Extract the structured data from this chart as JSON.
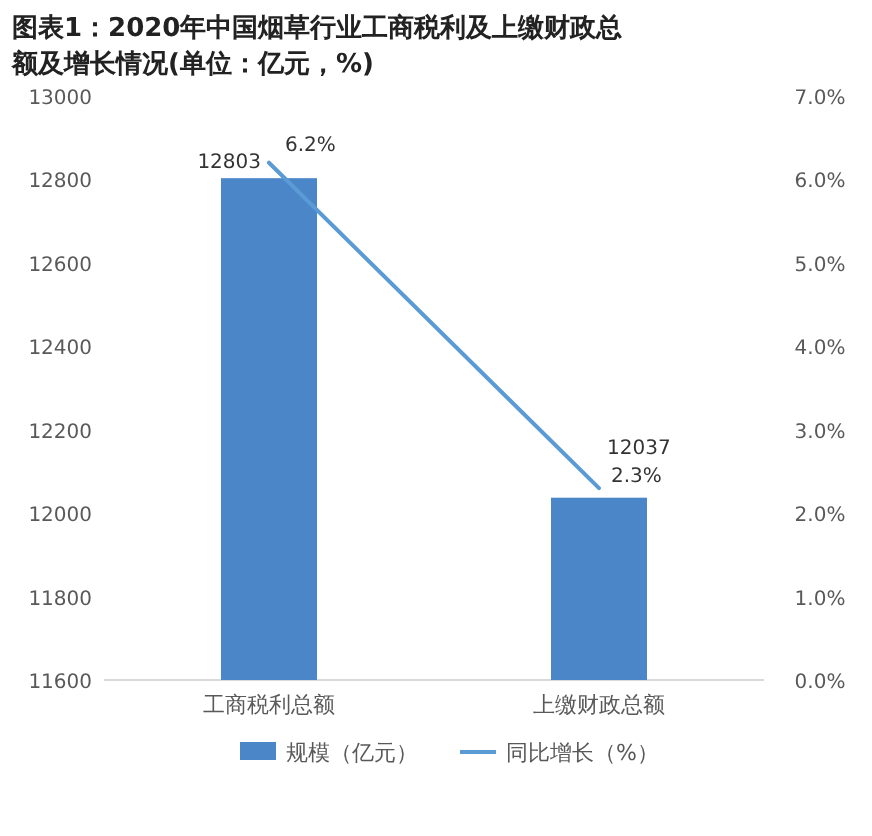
{
  "chart_data": {
    "type": "bar",
    "title": "图表1：2020年中国烟草行业工商税利及上缴财政总额及增长情况(单位：亿元，%)",
    "categories": [
      "工商税利总额",
      "上缴财政总额"
    ],
    "series": [
      {
        "name": "规模（亿元）",
        "type": "bar",
        "color": "#4a86c8",
        "values": [
          12803,
          12037
        ],
        "value_labels": [
          "12803",
          "12037"
        ]
      },
      {
        "name": "同比增长（%）",
        "type": "line",
        "axis": "y2",
        "color": "#5b9bd5",
        "values": [
          6.2,
          2.3
        ],
        "value_labels": [
          "6.2%",
          "2.3%"
        ]
      }
    ],
    "ylim": [
      11600,
      13000
    ],
    "yticks": [
      11600,
      11800,
      12000,
      12200,
      12400,
      12600,
      12800,
      13000
    ],
    "y2lim": [
      0,
      7
    ],
    "y2ticks": [
      {
        "value": 0,
        "label": "0.0%"
      },
      {
        "value": 1,
        "label": "1.0%"
      },
      {
        "value": 2,
        "label": "2.0%"
      },
      {
        "value": 3,
        "label": "3.0%"
      },
      {
        "value": 4,
        "label": "4.0%"
      },
      {
        "value": 5,
        "label": "5.0%"
      },
      {
        "value": 6,
        "label": "6.0%"
      },
      {
        "value": 7,
        "label": "7.0%"
      }
    ],
    "grid": false,
    "legend": "bottom",
    "marker": "none",
    "line_style": "solid"
  }
}
